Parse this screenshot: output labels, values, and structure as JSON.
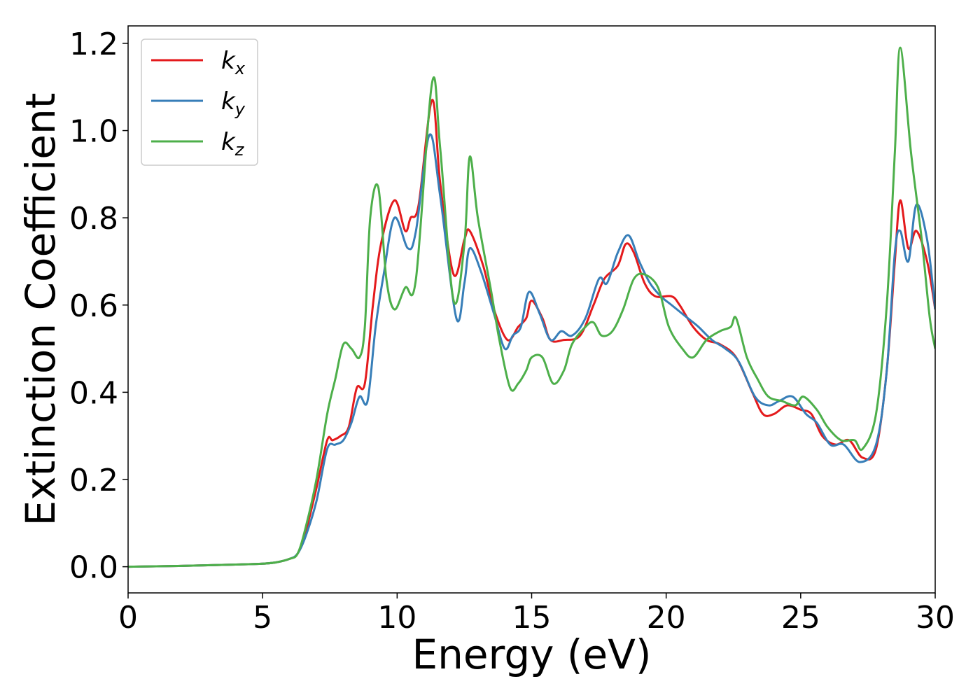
{
  "chart_data": {
    "type": "line",
    "xlabel": "Energy (eV)",
    "ylabel": "Extinction Coefficient",
    "xlim": [
      0,
      30
    ],
    "ylim": [
      -0.06,
      1.24
    ],
    "xticks": [
      0,
      5,
      10,
      15,
      20,
      25,
      30
    ],
    "yticks": [
      0.0,
      0.2,
      0.4,
      0.6,
      0.8,
      1.0,
      1.2
    ],
    "xtick_labels": [
      "0",
      "5",
      "10",
      "15",
      "20",
      "25",
      "30"
    ],
    "ytick_labels": [
      "0.0",
      "0.2",
      "0.4",
      "0.6",
      "0.8",
      "1.0",
      "1.2"
    ],
    "grid": false,
    "legend_position": "top-left",
    "series": [
      {
        "name": "k_x",
        "label_main": "k",
        "label_sub": "x",
        "color": "#e41a1c",
        "points": [
          [
            0,
            0
          ],
          [
            2,
            0.002
          ],
          [
            4,
            0.005
          ],
          [
            5,
            0.007
          ],
          [
            5.5,
            0.01
          ],
          [
            6,
            0.018
          ],
          [
            6.3,
            0.03
          ],
          [
            6.6,
            0.08
          ],
          [
            7,
            0.18
          ],
          [
            7.4,
            0.29
          ],
          [
            7.6,
            0.29
          ],
          [
            7.9,
            0.3
          ],
          [
            8.2,
            0.32
          ],
          [
            8.5,
            0.41
          ],
          [
            8.8,
            0.42
          ],
          [
            9.1,
            0.6
          ],
          [
            9.4,
            0.74
          ],
          [
            9.9,
            0.84
          ],
          [
            10.3,
            0.77
          ],
          [
            10.5,
            0.8
          ],
          [
            10.8,
            0.83
          ],
          [
            11.3,
            1.07
          ],
          [
            11.6,
            0.88
          ],
          [
            12.1,
            0.67
          ],
          [
            12.5,
            0.75
          ],
          [
            12.7,
            0.77
          ],
          [
            13.2,
            0.69
          ],
          [
            13.6,
            0.59
          ],
          [
            14.1,
            0.52
          ],
          [
            14.5,
            0.55
          ],
          [
            14.8,
            0.57
          ],
          [
            15,
            0.61
          ],
          [
            15.4,
            0.57
          ],
          [
            15.7,
            0.52
          ],
          [
            16.2,
            0.52
          ],
          [
            16.8,
            0.53
          ],
          [
            17.3,
            0.6
          ],
          [
            17.7,
            0.66
          ],
          [
            18.2,
            0.69
          ],
          [
            18.5,
            0.74
          ],
          [
            18.8,
            0.72
          ],
          [
            19.2,
            0.65
          ],
          [
            19.6,
            0.62
          ],
          [
            20.2,
            0.62
          ],
          [
            20.5,
            0.6
          ],
          [
            21,
            0.55
          ],
          [
            21.5,
            0.52
          ],
          [
            22,
            0.51
          ],
          [
            22.6,
            0.48
          ],
          [
            23.2,
            0.4
          ],
          [
            23.6,
            0.35
          ],
          [
            24,
            0.35
          ],
          [
            24.5,
            0.37
          ],
          [
            25,
            0.36
          ],
          [
            25.4,
            0.35
          ],
          [
            25.8,
            0.3
          ],
          [
            26.3,
            0.28
          ],
          [
            26.8,
            0.29
          ],
          [
            27.3,
            0.25
          ],
          [
            27.8,
            0.27
          ],
          [
            28.2,
            0.45
          ],
          [
            28.5,
            0.7
          ],
          [
            28.7,
            0.84
          ],
          [
            29,
            0.73
          ],
          [
            29.3,
            0.77
          ],
          [
            29.7,
            0.7
          ],
          [
            30,
            0.59
          ]
        ]
      },
      {
        "name": "k_y",
        "label_main": "k",
        "label_sub": "y",
        "color": "#377eb8",
        "points": [
          [
            0,
            0
          ],
          [
            2,
            0.002
          ],
          [
            4,
            0.005
          ],
          [
            5,
            0.007
          ],
          [
            5.5,
            0.01
          ],
          [
            6,
            0.018
          ],
          [
            6.3,
            0.03
          ],
          [
            6.6,
            0.07
          ],
          [
            7,
            0.15
          ],
          [
            7.4,
            0.27
          ],
          [
            7.7,
            0.28
          ],
          [
            8,
            0.29
          ],
          [
            8.3,
            0.33
          ],
          [
            8.6,
            0.39
          ],
          [
            8.9,
            0.38
          ],
          [
            9.2,
            0.55
          ],
          [
            9.5,
            0.67
          ],
          [
            9.9,
            0.8
          ],
          [
            10.4,
            0.73
          ],
          [
            10.7,
            0.77
          ],
          [
            11.2,
            0.99
          ],
          [
            11.6,
            0.85
          ],
          [
            12.2,
            0.57
          ],
          [
            12.5,
            0.65
          ],
          [
            12.7,
            0.73
          ],
          [
            13.1,
            0.68
          ],
          [
            13.6,
            0.58
          ],
          [
            14,
            0.5
          ],
          [
            14.3,
            0.53
          ],
          [
            14.6,
            0.55
          ],
          [
            14.9,
            0.63
          ],
          [
            15.3,
            0.58
          ],
          [
            15.7,
            0.52
          ],
          [
            16.1,
            0.54
          ],
          [
            16.5,
            0.53
          ],
          [
            17,
            0.57
          ],
          [
            17.5,
            0.66
          ],
          [
            17.8,
            0.65
          ],
          [
            18.2,
            0.72
          ],
          [
            18.6,
            0.76
          ],
          [
            19,
            0.7
          ],
          [
            19.4,
            0.65
          ],
          [
            19.8,
            0.62
          ],
          [
            20.2,
            0.6
          ],
          [
            20.8,
            0.57
          ],
          [
            21.2,
            0.55
          ],
          [
            21.7,
            0.52
          ],
          [
            22.2,
            0.5
          ],
          [
            22.7,
            0.47
          ],
          [
            23.3,
            0.39
          ],
          [
            23.8,
            0.37
          ],
          [
            24.2,
            0.38
          ],
          [
            24.7,
            0.39
          ],
          [
            25.2,
            0.35
          ],
          [
            25.6,
            0.33
          ],
          [
            26.1,
            0.28
          ],
          [
            26.6,
            0.28
          ],
          [
            27.2,
            0.24
          ],
          [
            27.8,
            0.28
          ],
          [
            28.2,
            0.45
          ],
          [
            28.5,
            0.72
          ],
          [
            28.7,
            0.77
          ],
          [
            29,
            0.7
          ],
          [
            29.3,
            0.83
          ],
          [
            29.7,
            0.75
          ],
          [
            30,
            0.59
          ]
        ]
      },
      {
        "name": "k_z",
        "label_main": "k",
        "label_sub": "z",
        "color": "#4daf4a",
        "points": [
          [
            0,
            0
          ],
          [
            2,
            0.002
          ],
          [
            4,
            0.005
          ],
          [
            5,
            0.007
          ],
          [
            5.5,
            0.01
          ],
          [
            6,
            0.018
          ],
          [
            6.3,
            0.03
          ],
          [
            6.6,
            0.09
          ],
          [
            7,
            0.2
          ],
          [
            7.4,
            0.35
          ],
          [
            7.7,
            0.43
          ],
          [
            8,
            0.51
          ],
          [
            8.3,
            0.5
          ],
          [
            8.6,
            0.48
          ],
          [
            8.8,
            0.55
          ],
          [
            9,
            0.8
          ],
          [
            9.3,
            0.87
          ],
          [
            9.6,
            0.66
          ],
          [
            9.9,
            0.59
          ],
          [
            10.3,
            0.64
          ],
          [
            10.7,
            0.66
          ],
          [
            11.3,
            1.11
          ],
          [
            11.6,
            0.96
          ],
          [
            12.1,
            0.61
          ],
          [
            12.5,
            0.74
          ],
          [
            12.7,
            0.94
          ],
          [
            13,
            0.8
          ],
          [
            13.5,
            0.63
          ],
          [
            13.8,
            0.52
          ],
          [
            14.2,
            0.41
          ],
          [
            14.5,
            0.42
          ],
          [
            14.8,
            0.45
          ],
          [
            15,
            0.48
          ],
          [
            15.4,
            0.48
          ],
          [
            15.8,
            0.42
          ],
          [
            16.2,
            0.45
          ],
          [
            16.5,
            0.51
          ],
          [
            17,
            0.55
          ],
          [
            17.3,
            0.56
          ],
          [
            17.6,
            0.53
          ],
          [
            18,
            0.54
          ],
          [
            18.4,
            0.59
          ],
          [
            18.8,
            0.66
          ],
          [
            19.2,
            0.67
          ],
          [
            19.7,
            0.64
          ],
          [
            20.1,
            0.55
          ],
          [
            20.6,
            0.5
          ],
          [
            21,
            0.48
          ],
          [
            21.5,
            0.52
          ],
          [
            22,
            0.54
          ],
          [
            22.4,
            0.55
          ],
          [
            22.6,
            0.57
          ],
          [
            23,
            0.48
          ],
          [
            23.4,
            0.43
          ],
          [
            23.8,
            0.39
          ],
          [
            24.3,
            0.38
          ],
          [
            24.8,
            0.37
          ],
          [
            25.1,
            0.39
          ],
          [
            25.6,
            0.36
          ],
          [
            26,
            0.32
          ],
          [
            26.5,
            0.29
          ],
          [
            27,
            0.29
          ],
          [
            27.3,
            0.27
          ],
          [
            27.8,
            0.35
          ],
          [
            28.2,
            0.6
          ],
          [
            28.5,
            0.95
          ],
          [
            28.7,
            1.19
          ],
          [
            29.1,
            0.95
          ],
          [
            29.5,
            0.75
          ],
          [
            29.8,
            0.57
          ],
          [
            30,
            0.5
          ]
        ]
      }
    ]
  }
}
